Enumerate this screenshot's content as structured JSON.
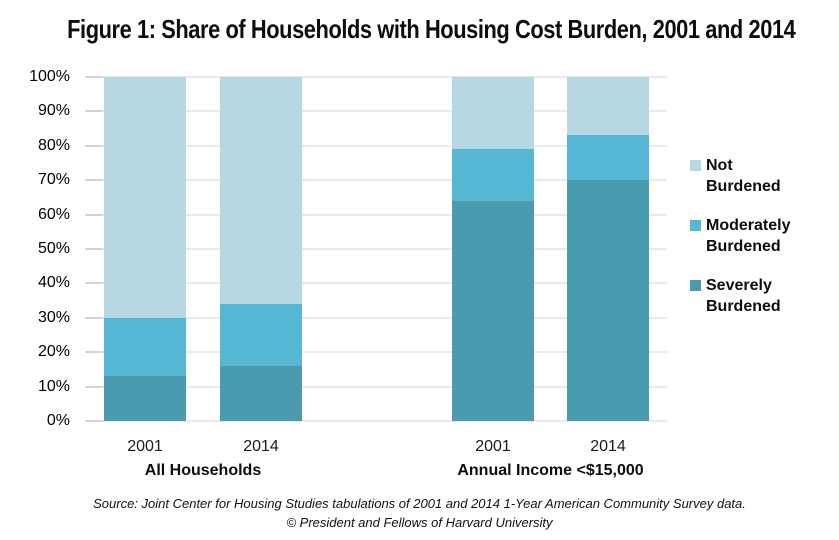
{
  "chart_data": {
    "type": "bar",
    "stacked": true,
    "title": "Figure 1: Share of Households with Housing Cost Burden, 2001 and 2014",
    "categories": [
      "2001",
      "2014",
      "2001",
      "2014"
    ],
    "groups": [
      {
        "label": "All Households",
        "category_indexes": [
          0,
          1
        ]
      },
      {
        "label": "Annual Income <$15,000",
        "category_indexes": [
          2,
          3
        ]
      }
    ],
    "series": [
      {
        "name": "Severely Burdened",
        "color": "#4b9bb0",
        "values": [
          13,
          16,
          64,
          70
        ]
      },
      {
        "name": "Moderately Burdened",
        "color": "#55b7d3",
        "values": [
          17,
          18,
          15,
          13
        ]
      },
      {
        "name": "Not Burdened",
        "color": "#b7d7e2",
        "values": [
          70,
          66,
          21,
          17
        ]
      }
    ],
    "y_axis": {
      "ticks": [
        "100%",
        "90%",
        "80%",
        "70%",
        "60%",
        "50%",
        "40%",
        "30%",
        "20%",
        "10%",
        "0%"
      ],
      "min": 0,
      "max": 100
    },
    "legend": {
      "position": "right",
      "order": [
        "Not Burdened",
        "Moderately Burdened",
        "Severely Burdened"
      ]
    },
    "grid": true
  },
  "source_note": {
    "line1": "Source: Joint Center for Housing Studies tabulations of 2001 and 2014 1-Year American Community Survey data.",
    "line2": "© President and Fellows of Harvard University"
  }
}
